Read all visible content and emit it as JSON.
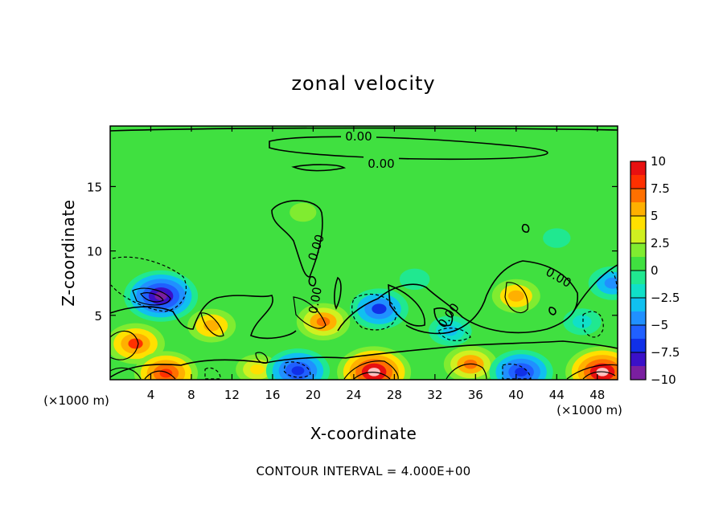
{
  "chart_data": {
    "type": "heatmap",
    "title": "zonal velocity",
    "xlabel": "X-coordinate",
    "ylabel": "Z-coordinate",
    "x_unit": "(×1000 m)",
    "z_unit": "(×1000 m)",
    "xlim": [
      0,
      50
    ],
    "ylim": [
      0,
      19.7
    ],
    "x_ticks": [
      "4",
      "8",
      "12",
      "16",
      "20",
      "24",
      "28",
      "32",
      "36",
      "40",
      "44",
      "48"
    ],
    "y_ticks": [
      "5",
      "10",
      "15"
    ],
    "colorbar": {
      "ticks": [
        "10",
        "7.5",
        "5",
        "2.5",
        "0",
        "−2.5",
        "−5",
        "−7.5",
        "−10"
      ],
      "range": [
        -10,
        10
      ]
    },
    "contour_labels": [
      "0.00",
      "0.00",
      "0.00",
      "0.00",
      "0.00",
      "0.00"
    ],
    "note": "CONTOUR INTERVAL = 4.000E+00",
    "features": [
      {
        "x": 5,
        "z": 6.5,
        "value": -10
      },
      {
        "x": 2.5,
        "z": 2.8,
        "value": 7
      },
      {
        "x": 5.5,
        "z": 0.5,
        "value": 8
      },
      {
        "x": 10,
        "z": 4.2,
        "value": 5
      },
      {
        "x": 14.5,
        "z": 0.8,
        "value": 4
      },
      {
        "x": 18.5,
        "z": 0.7,
        "value": -8
      },
      {
        "x": 21,
        "z": 4.5,
        "value": 6
      },
      {
        "x": 26.5,
        "z": 5.5,
        "value": -7
      },
      {
        "x": 26,
        "z": 0.6,
        "value": 10
      },
      {
        "x": 33.5,
        "z": 3.8,
        "value": -4
      },
      {
        "x": 35.5,
        "z": 1.2,
        "value": 6
      },
      {
        "x": 40,
        "z": 6.5,
        "value": 5
      },
      {
        "x": 40.5,
        "z": 0.6,
        "value": -8
      },
      {
        "x": 46.5,
        "z": 4.5,
        "value": -3
      },
      {
        "x": 48.5,
        "z": 0.6,
        "value": 10
      },
      {
        "x": 49.5,
        "z": 7.5,
        "value": -5
      },
      {
        "x": 19,
        "z": 13,
        "value": 0.8
      },
      {
        "x": 30,
        "z": 7.8,
        "value": -1.5
      },
      {
        "x": 44,
        "z": 11,
        "value": -1
      }
    ]
  }
}
